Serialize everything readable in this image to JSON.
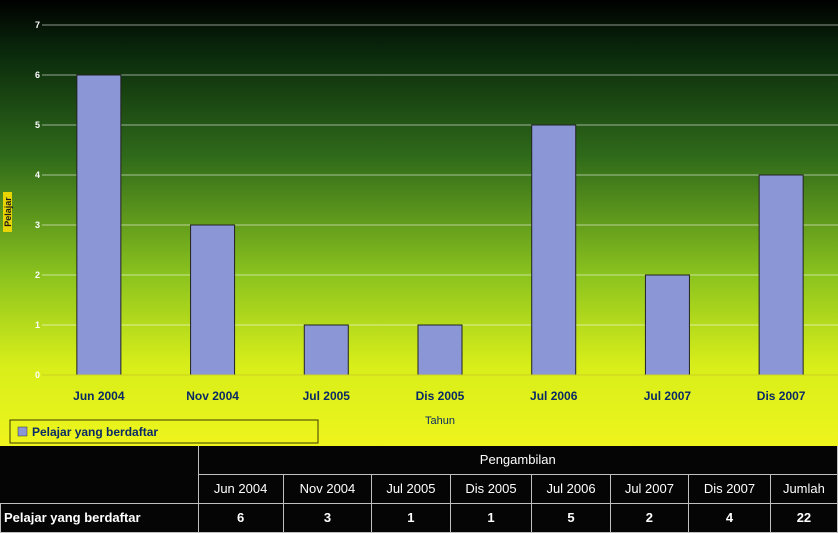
{
  "chart_data": {
    "type": "bar",
    "categories": [
      "Jun 2004",
      "Nov 2004",
      "Jul 2005",
      "Dis 2005",
      "Jul 2006",
      "Jul 2007",
      "Dis 2007"
    ],
    "series": [
      {
        "name": "Pelajar yang berdaftar",
        "values": [
          6,
          3,
          1,
          1,
          5,
          2,
          4
        ],
        "color": "#8b96d6"
      }
    ],
    "xlabel": "Tahun",
    "ylabel": "Pelajar",
    "ylim": [
      0,
      7
    ],
    "yticks": [
      "0",
      "1",
      "2",
      "3",
      "4",
      "5",
      "6",
      "7"
    ],
    "grid": true,
    "legend_position": "bottom-left",
    "background_gradient": [
      "#000000",
      "#0f3d14",
      "#7cb81c",
      "#e4f21a",
      "#f0f514"
    ]
  },
  "table": {
    "group_header": "Pengambilan",
    "columns": [
      "Jun 2004",
      "Nov 2004",
      "Jul 2005",
      "Dis 2005",
      "Jul 2006",
      "Jul 2007",
      "Dis 2007",
      "Jumlah"
    ],
    "row_label": "Pelajar yang berdaftar",
    "values": [
      "6",
      "3",
      "1",
      "1",
      "5",
      "2",
      "4",
      "22"
    ]
  }
}
